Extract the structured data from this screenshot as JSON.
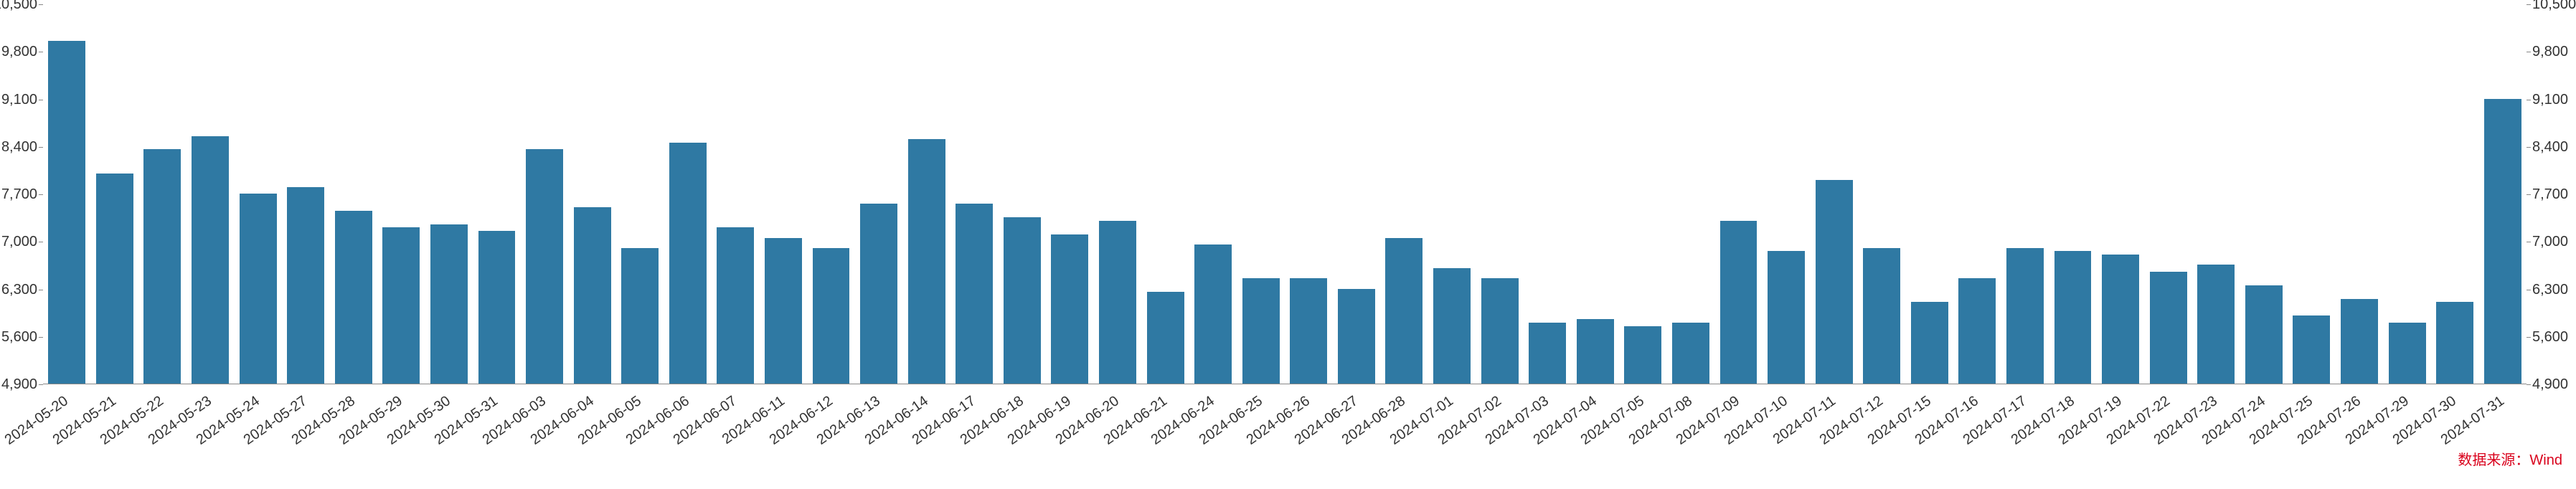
{
  "chart": {
    "type": "bar",
    "background_color": "#ffffff",
    "bar_color": "#2f79a3",
    "axis_color": "#888888",
    "text_color": "#333333",
    "source_color": "#d9001b",
    "label_fontsize": 20,
    "ylim": [
      4900,
      10500
    ],
    "ytick_step": 700,
    "yticks": [
      4900,
      5600,
      6300,
      7000,
      7700,
      8400,
      9100,
      9800,
      10500
    ],
    "ytick_format": "comma",
    "bar_width_ratio": 0.78,
    "x_label_rotation_deg": -35,
    "categories": [
      "2024-05-20",
      "2024-05-21",
      "2024-05-22",
      "2024-05-23",
      "2024-05-24",
      "2024-05-27",
      "2024-05-28",
      "2024-05-29",
      "2024-05-30",
      "2024-05-31",
      "2024-06-03",
      "2024-06-04",
      "2024-06-05",
      "2024-06-06",
      "2024-06-07",
      "2024-06-11",
      "2024-06-12",
      "2024-06-13",
      "2024-06-14",
      "2024-06-17",
      "2024-06-18",
      "2024-06-19",
      "2024-06-20",
      "2024-06-21",
      "2024-06-24",
      "2024-06-25",
      "2024-06-26",
      "2024-06-27",
      "2024-06-28",
      "2024-07-01",
      "2024-07-02",
      "2024-07-03",
      "2024-07-04",
      "2024-07-05",
      "2024-07-08",
      "2024-07-09",
      "2024-07-10",
      "2024-07-11",
      "2024-07-12",
      "2024-07-15",
      "2024-07-16",
      "2024-07-17",
      "2024-07-18",
      "2024-07-19",
      "2024-07-22",
      "2024-07-23",
      "2024-07-24",
      "2024-07-25",
      "2024-07-26",
      "2024-07-29",
      "2024-07-30",
      "2024-07-31"
    ],
    "values": [
      9950,
      8000,
      8350,
      8550,
      7700,
      7800,
      7450,
      7200,
      7250,
      7150,
      8350,
      7500,
      6900,
      8450,
      7200,
      7050,
      6900,
      7550,
      8500,
      7550,
      7350,
      7100,
      7300,
      6250,
      6950,
      6450,
      6450,
      6300,
      7050,
      6600,
      6450,
      5800,
      5850,
      5750,
      5800,
      7300,
      6850,
      7900,
      6900,
      6100,
      6450,
      6900,
      6850,
      6800,
      6550,
      6650,
      6350,
      5900,
      6150,
      5800,
      6100,
      9100
    ]
  },
  "source": {
    "label": "数据来源：Wind"
  }
}
